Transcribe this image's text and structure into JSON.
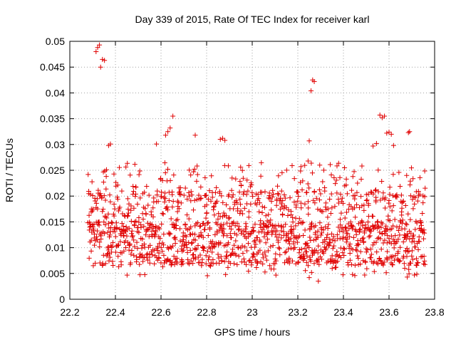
{
  "chart_data": {
    "type": "scatter",
    "title": "Day 339 of 2015, Rate Of TEC Index for receiver karl",
    "xlabel": "GPS time / hours",
    "ylabel": "ROTI / TECUs",
    "xlim": [
      22.2,
      23.8
    ],
    "ylim": [
      0,
      0.05
    ],
    "xticks": [
      "22.2",
      "22.4",
      "22.6",
      "22.8",
      "23",
      "23.2",
      "23.4",
      "23.6",
      "23.8"
    ],
    "yticks": [
      "0",
      "0.005",
      "0.01",
      "0.015",
      "0.02",
      "0.025",
      "0.03",
      "0.035",
      "0.04",
      "0.045",
      "0.05"
    ],
    "grid": true,
    "marker": "plus",
    "color": "#e00000",
    "x_range_of_points": [
      22.28,
      23.76
    ],
    "outliers": [
      {
        "x": 22.315,
        "y": 0.048
      },
      {
        "x": 22.322,
        "y": 0.0488
      },
      {
        "x": 22.33,
        "y": 0.0493
      },
      {
        "x": 22.335,
        "y": 0.045
      },
      {
        "x": 22.343,
        "y": 0.0465
      },
      {
        "x": 22.352,
        "y": 0.0463
      },
      {
        "x": 22.37,
        "y": 0.0298
      },
      {
        "x": 22.378,
        "y": 0.0301
      },
      {
        "x": 22.62,
        "y": 0.0318
      },
      {
        "x": 22.63,
        "y": 0.0325
      },
      {
        "x": 22.64,
        "y": 0.0332
      },
      {
        "x": 22.652,
        "y": 0.0355
      },
      {
        "x": 22.58,
        "y": 0.0301
      },
      {
        "x": 22.75,
        "y": 0.0318
      },
      {
        "x": 22.86,
        "y": 0.031
      },
      {
        "x": 22.87,
        "y": 0.0312
      },
      {
        "x": 22.88,
        "y": 0.0308
      },
      {
        "x": 23.25,
        "y": 0.0307
      },
      {
        "x": 23.245,
        "y": 0.0268
      },
      {
        "x": 23.265,
        "y": 0.0425
      },
      {
        "x": 23.272,
        "y": 0.0422
      },
      {
        "x": 23.258,
        "y": 0.0404
      },
      {
        "x": 23.56,
        "y": 0.0357
      },
      {
        "x": 23.57,
        "y": 0.0352
      },
      {
        "x": 23.58,
        "y": 0.0355
      },
      {
        "x": 23.59,
        "y": 0.0322
      },
      {
        "x": 23.6,
        "y": 0.0324
      },
      {
        "x": 23.61,
        "y": 0.032
      },
      {
        "x": 23.685,
        "y": 0.0323
      },
      {
        "x": 23.69,
        "y": 0.0325
      },
      {
        "x": 23.53,
        "y": 0.0297
      },
      {
        "x": 23.545,
        "y": 0.0302
      },
      {
        "x": 23.62,
        "y": 0.0298
      },
      {
        "x": 23.25,
        "y": 0.0042
      },
      {
        "x": 23.26,
        "y": 0.0052
      },
      {
        "x": 23.29,
        "y": 0.0035
      },
      {
        "x": 23.44,
        "y": 0.0048
      },
      {
        "x": 23.45,
        "y": 0.0046
      },
      {
        "x": 23.68,
        "y": 0.0043
      }
    ]
  }
}
